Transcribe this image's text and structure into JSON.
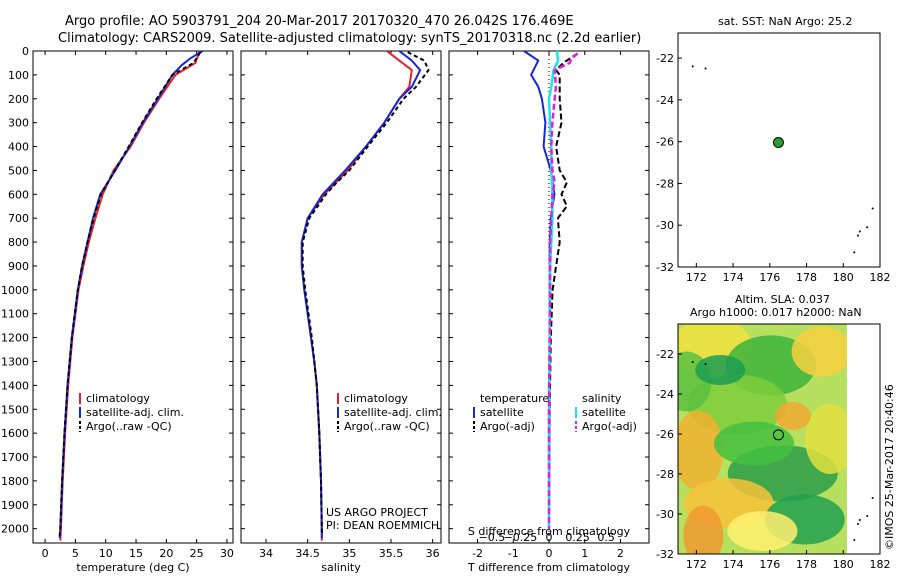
{
  "header": {
    "line1": "Argo profile: AO 5903791_204 20-Mar-2017 20170320_470 26.042S 176.469E",
    "line2": "Climatology: CARS2009. Satellite-adjusted climatology: synTS_20170318.nc (2.2d earlier)"
  },
  "colors": {
    "clim": "#e8202a",
    "sat": "#1428d8",
    "argo": "#000000",
    "sal_sat": "#19e6e6",
    "sal_argo": "#e020e0",
    "land": "#000000"
  },
  "footer_left": {
    "line1": "US ARGO PROJECT",
    "line2": "PI: DEAN ROEMMICH"
  },
  "side_credit": "©IMOS 25-Mar-2017 20:40:46",
  "map_top": {
    "title": "sat. SST: NaN Argo: 25.2"
  },
  "map_bottom": {
    "title1": "Altim. SLA: 0.037",
    "title2": "Argo h1000: 0.017 h2000: NaN"
  },
  "chart_data": [
    {
      "type": "line",
      "xlabel": "temperature (deg C)",
      "xlim": [
        -2,
        31
      ],
      "ylim": [
        2060,
        0
      ],
      "xticks": [
        0,
        5,
        10,
        15,
        20,
        25,
        30
      ],
      "yticks": [
        0,
        100,
        200,
        300,
        400,
        500,
        600,
        700,
        800,
        900,
        1000,
        1100,
        1200,
        1300,
        1400,
        1500,
        1600,
        1700,
        1800,
        1900,
        2000
      ],
      "legend": [
        "climatology",
        "satellite-adj. clim.",
        "Argo(..raw -QC)"
      ],
      "legend_placement": "lower-center",
      "series": [
        {
          "name": "climatology",
          "style": "red",
          "depth": [
            0,
            50,
            100,
            200,
            300,
            400,
            500,
            600,
            700,
            800,
            900,
            1000,
            1200,
            1400,
            1600,
            1800,
            2000,
            2050
          ],
          "values": [
            25.5,
            24.8,
            21.5,
            18.8,
            16.3,
            14.1,
            11.3,
            9.5,
            8.3,
            7.2,
            6.3,
            5.5,
            4.5,
            3.8,
            3.3,
            2.9,
            2.6,
            2.5
          ]
        },
        {
          "name": "satellite-adj. clim.",
          "style": "blue",
          "depth": [
            0,
            30,
            60,
            100,
            200,
            300,
            400,
            500,
            600,
            700,
            800,
            900,
            1000,
            1200,
            1400,
            1600,
            1800,
            2000,
            2040
          ],
          "values": [
            26.0,
            24.0,
            22.5,
            21.0,
            18.6,
            16.1,
            13.9,
            11.6,
            9.1,
            7.9,
            7.0,
            6.1,
            5.4,
            4.4,
            3.7,
            3.2,
            2.8,
            2.5,
            2.4
          ]
        },
        {
          "name": "Argo(..raw -QC)",
          "style": "black",
          "depth": [
            5,
            50,
            100,
            200,
            300,
            400,
            500,
            600,
            700,
            800,
            900,
            1000,
            1200,
            1400,
            1600,
            1800,
            2000,
            2030
          ],
          "values": [
            25.6,
            24.5,
            21.0,
            18.4,
            16.0,
            13.8,
            11.5,
            9.2,
            8.0,
            7.0,
            6.1,
            5.4,
            4.4,
            3.7,
            3.2,
            2.8,
            2.5,
            2.4
          ]
        }
      ]
    },
    {
      "type": "line",
      "xlabel": "salinity",
      "xlim": [
        33.7,
        36.1
      ],
      "ylim": [
        2060,
        0
      ],
      "xticks": [
        34,
        34.5,
        35,
        35.5,
        36
      ],
      "legend": [
        "climatology",
        "satellite-adj. clim.",
        "Argo(..raw -QC)"
      ],
      "legend_placement": "lower-center",
      "series": [
        {
          "name": "climatology",
          "style": "red",
          "depth": [
            0,
            40,
            80,
            150,
            200,
            300,
            400,
            500,
            600,
            700,
            800,
            900,
            1000,
            1100,
            1200,
            1300,
            1400,
            1600,
            1800,
            2000,
            2050
          ],
          "values": [
            35.45,
            35.6,
            35.75,
            35.72,
            35.6,
            35.42,
            35.2,
            34.98,
            34.7,
            34.5,
            34.43,
            34.43,
            34.46,
            34.5,
            34.54,
            34.58,
            34.61,
            34.64,
            34.66,
            34.67,
            34.67
          ]
        },
        {
          "name": "satellite-adj. clim.",
          "style": "blue",
          "depth": [
            0,
            40,
            80,
            150,
            200,
            300,
            400,
            500,
            600,
            700,
            800,
            900,
            1000,
            1100,
            1200,
            1300,
            1400,
            1600,
            1800,
            2000,
            2040
          ],
          "values": [
            35.6,
            35.75,
            35.85,
            35.75,
            35.6,
            35.42,
            35.2,
            34.95,
            34.68,
            34.5,
            34.43,
            34.43,
            34.46,
            34.5,
            34.54,
            34.58,
            34.61,
            34.64,
            34.66,
            34.67,
            34.67
          ]
        },
        {
          "name": "Argo(..raw -QC)",
          "style": "black",
          "depth": [
            5,
            40,
            80,
            150,
            200,
            300,
            400,
            500,
            550,
            600,
            700,
            800,
            900,
            1000,
            1200,
            1400,
            1600,
            1800,
            2000,
            2030
          ],
          "values": [
            35.7,
            35.9,
            35.95,
            35.8,
            35.65,
            35.45,
            35.22,
            35.0,
            34.85,
            34.72,
            34.52,
            34.44,
            34.44,
            34.47,
            34.55,
            34.61,
            34.64,
            34.66,
            34.67,
            34.67
          ]
        }
      ]
    },
    {
      "type": "line",
      "xlabel": "T difference from climatology",
      "x2label": "S difference from climatology",
      "xlim": [
        -2.8,
        2.8
      ],
      "ylim": [
        2060,
        0
      ],
      "xticks": [
        -2,
        -1,
        0,
        1,
        2
      ],
      "x2ticks": [
        -0.5,
        -0.25,
        0,
        0.25,
        0.5
      ],
      "x2tick_labels": [
        "−0.5",
        "−0.25",
        "0",
        "0.25",
        "0.5"
      ],
      "legend_temperature": {
        "heading": "temperature",
        "items": [
          "satellite",
          "Argo(-adj)"
        ]
      },
      "legend_salinity": {
        "heading": "salinity",
        "items": [
          "satellite",
          "Argo(-adj)"
        ]
      },
      "series": [
        {
          "name": "satellite",
          "group": "temperature",
          "style": "blue",
          "depth": [
            0,
            40,
            70,
            100,
            150,
            200,
            300,
            400,
            500,
            600,
            650,
            700,
            800,
            1000,
            1500,
            2000
          ],
          "values": [
            -0.7,
            -0.3,
            -0.4,
            -0.5,
            -0.3,
            -0.2,
            -0.1,
            -0.15,
            0.05,
            0.15,
            0.1,
            0.05,
            0.02,
            0.02,
            0.01,
            0.0
          ]
        },
        {
          "name": "Argo(-adj)",
          "group": "temperature",
          "style": "black-dashed",
          "depth": [
            10,
            50,
            80,
            100,
            200,
            300,
            400,
            500,
            550,
            600,
            650,
            700,
            800,
            900,
            1000,
            1200,
            1500,
            2000
          ],
          "values": [
            0.8,
            0.4,
            0.2,
            0.3,
            0.3,
            0.35,
            0.2,
            0.3,
            0.5,
            0.35,
            0.5,
            0.25,
            0.3,
            0.2,
            0.1,
            0.05,
            0.02,
            0.0
          ]
        },
        {
          "name": "satellite",
          "group": "salinity",
          "style": "cyan",
          "depth": [
            0,
            40,
            80,
            150,
            200,
            300,
            400,
            500,
            600,
            700,
            800,
            900,
            1000,
            1500,
            2000
          ],
          "values": [
            0.07,
            0.08,
            0.04,
            0.02,
            0.0,
            0.01,
            0.02,
            0.02,
            0.03,
            0.03,
            0.02,
            0.01,
            0.01,
            0.0,
            0.0
          ]
        },
        {
          "name": "Argo(-adj)",
          "group": "salinity",
          "style": "magenta-dashed",
          "depth": [
            10,
            30,
            50,
            80,
            150,
            200,
            300,
            400,
            500,
            550,
            600,
            700,
            800,
            1000,
            1500,
            2000
          ],
          "values": [
            0.25,
            0.2,
            0.18,
            0.05,
            0.06,
            0.05,
            0.03,
            0.02,
            0.03,
            0.05,
            0.03,
            0.02,
            0.01,
            0.01,
            0.0,
            0.0
          ]
        }
      ]
    },
    {
      "type": "scatter",
      "xlim": [
        171,
        182
      ],
      "ylim": [
        -32,
        -20.8
      ],
      "xticks": [
        172,
        174,
        176,
        178,
        180,
        182
      ],
      "yticks": [
        -22,
        -24,
        -26,
        -28,
        -30,
        -32
      ],
      "profile_location": {
        "lon": 176.469,
        "lat": -26.042
      },
      "land_points": [
        [
          171.8,
          -22.4
        ],
        [
          172.5,
          -22.5
        ],
        [
          181.6,
          -29.2
        ],
        [
          181.3,
          -30.1
        ],
        [
          180.9,
          -30.3
        ],
        [
          180.8,
          -30.5
        ],
        [
          180.6,
          -31.3
        ]
      ]
    },
    {
      "type": "heatmap",
      "xlim": [
        171,
        182
      ],
      "ylim": [
        -32,
        -20.5
      ],
      "xticks": [
        172,
        174,
        176,
        178,
        180,
        182
      ],
      "yticks": [
        -22,
        -24,
        -26,
        -28,
        -30,
        -32
      ],
      "data_extent_lon": [
        171,
        180.2
      ],
      "profile_location": {
        "lon": 176.469,
        "lat": -26.042
      },
      "land_points": [
        [
          171.8,
          -22.4
        ],
        [
          172.5,
          -22.5
        ],
        [
          181.6,
          -29.2
        ],
        [
          181.3,
          -30.1
        ],
        [
          180.9,
          -30.3
        ],
        [
          180.8,
          -30.5
        ],
        [
          180.6,
          -31.3
        ]
      ]
    }
  ]
}
